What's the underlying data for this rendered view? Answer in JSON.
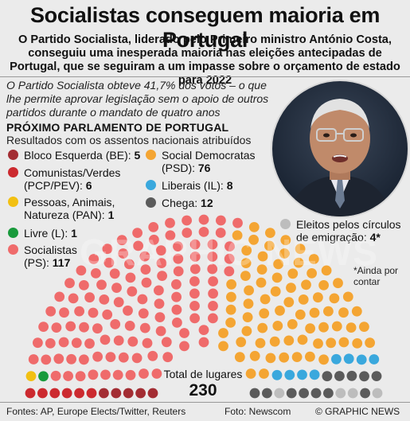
{
  "header": {
    "title": "Socialistas conseguem maioria em Portugal",
    "subtitle": "O Partido Socialista, liderado pelo Primeiro ministro António Costa, conseguiu uma inesperada maioria nas eleições antecipadas de Portugal, que se seguiram a um impasse sobre o orçamento de estado para 2022"
  },
  "intro": "O Partido Socialista obteve 41,7% dos votos – o que lhe permite aprovar legislação sem o apoio de outros partidos durante o mandato de quatro anos",
  "section": {
    "title": "PRÓXIMO PARLAMENTO DE PORTUGAL",
    "subtitle": "Resultados com os assentos nacionais atribuídos"
  },
  "legend": {
    "be": {
      "label": "Bloco Esquerda (BE):",
      "value": "5",
      "color": "#a32d33"
    },
    "pcp": {
      "label1": "Comunistas/Verdes",
      "label2": "(PCP/PEV):",
      "value": "6",
      "color": "#cc2a2f"
    },
    "pan": {
      "label1": "Pessoas, Animais,",
      "label2": "Natureza (PAN):",
      "value": "1",
      "color": "#f2c012"
    },
    "livre": {
      "label": "Livre (L):",
      "value": "1",
      "color": "#199a3c"
    },
    "ps": {
      "label1": "Socialistas",
      "label2": "(PS):",
      "value": "117",
      "color": "#ef6b6b"
    },
    "psd": {
      "label1": "Social Democratas",
      "label2": "(PSD):",
      "value": "76",
      "color": "#f4a533"
    },
    "il": {
      "label": "Liberais (IL):",
      "value": "8",
      "color": "#3aa8dd"
    },
    "chega": {
      "label": "Chega:",
      "value": "12",
      "color": "#5b5b5b"
    },
    "emig": {
      "label1": "Eleitos pelos círculos",
      "label2": "de emigração:",
      "value": "4*",
      "color": "#bdbdbd"
    }
  },
  "footnote": {
    "line1": "*Ainda por",
    "line2": "contar"
  },
  "total": {
    "label": "Total de lugares",
    "value": "230"
  },
  "watermark": "GRAPHIC NEWS",
  "footer": {
    "sources": "Fontes: AP, Europe Elects/Twitter, Reuters",
    "photo": "Foto: Newscom",
    "copyright": "© GRAPHIC NEWS"
  },
  "chart_data": {
    "type": "hemicycle",
    "total_seats": 230,
    "series": [
      {
        "name": "Bloco Esquerda (BE)",
        "seats": 5,
        "color": "#a32d33"
      },
      {
        "name": "Comunistas/Verdes (PCP/PEV)",
        "seats": 6,
        "color": "#cc2a2f"
      },
      {
        "name": "Pessoas, Animais, Natureza (PAN)",
        "seats": 1,
        "color": "#f2c012"
      },
      {
        "name": "Livre (L)",
        "seats": 1,
        "color": "#199a3c"
      },
      {
        "name": "Socialistas (PS)",
        "seats": 117,
        "color": "#ef6b6b"
      },
      {
        "name": "Social Democratas (PSD)",
        "seats": 76,
        "color": "#f4a533"
      },
      {
        "name": "Liberais (IL)",
        "seats": 8,
        "color": "#3aa8dd"
      },
      {
        "name": "Chega",
        "seats": 12,
        "color": "#5b5b5b"
      },
      {
        "name": "Eleitos pelos círculos de emigração",
        "seats": 4,
        "color": "#bdbdbd"
      }
    ]
  }
}
